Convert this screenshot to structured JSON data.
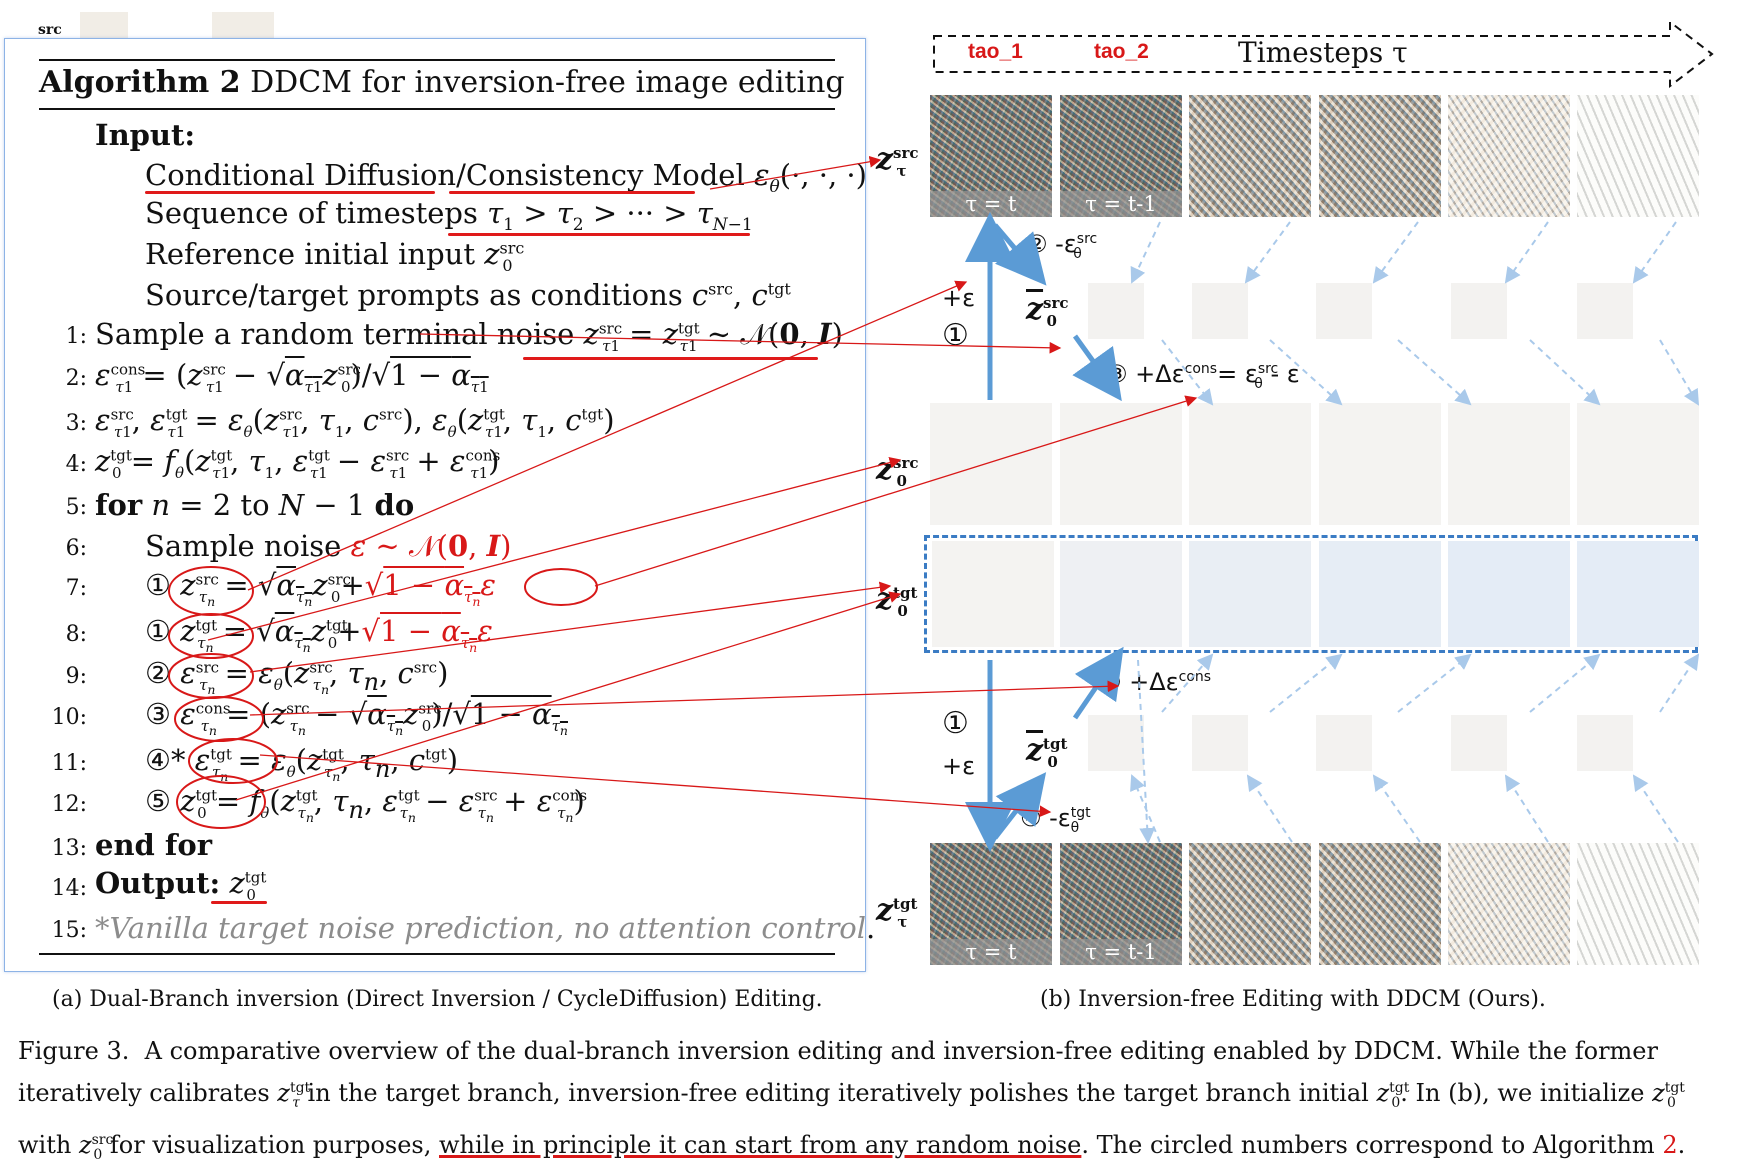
{
  "header_snippet": {
    "label": "src"
  },
  "algorithm": {
    "title_bold": "Algorithm 2",
    "title_rest": " DDCM for inversion-free image editing",
    "input_label": "Input:",
    "inputs": [
      "Conditional Diffusion/Consistency Model εθ(·, ·, ·)",
      "Sequence of timesteps τ1 > τ2 > ··· > τN−1",
      "Reference initial input z0src",
      "Source/target prompts as conditions csrc, ctgt"
    ],
    "lines": [
      {
        "no": "1:",
        "text": "Sample a random terminal noise zτ1src = zτ1tgt ∼ N(0, I)"
      },
      {
        "no": "2:",
        "text": "ετ1cons = (zτ1src − √ατ1 z0src)/√1 − ατ1"
      },
      {
        "no": "3:",
        "text": "ετ1src, ετ1tgt = εθ(zτ1src, τ1, csrc), εθ(zτ1tgt, τ1, ctgt)"
      },
      {
        "no": "4:",
        "text": "z0tgt = fθ(zτ1tgt, τ1, ετ1tgt − ετ1src + ετ1cons)"
      },
      {
        "no": "5:",
        "text": "for n = 2 to N − 1 do"
      },
      {
        "no": "6:",
        "text": "Sample noise ε ∼ N(0, I)"
      },
      {
        "no": "7:",
        "text": "① zτnsrc = √ατn z0src + √1 − ατn ε"
      },
      {
        "no": "8:",
        "text": "① zτntgt = √ατn z0tgt + √1 − ατn ε"
      },
      {
        "no": "9:",
        "text": "② ετnsrc = εθ(zτnsrc, τn, csrc)"
      },
      {
        "no": "10:",
        "text": "③ ετncons = (zτnsrc − √ατn z0src)/√1 − ατn"
      },
      {
        "no": "11:",
        "text": "④* ετntgt = εθ(zτntgt, τn, ctgt)"
      },
      {
        "no": "12:",
        "text": "⑤ z0tgt = fθ(zτntgt, τn, ετntgt − ετnsrc + ετncons)"
      },
      {
        "no": "13:",
        "text": "end for"
      },
      {
        "no": "14:",
        "text": "Output: z0tgt"
      },
      {
        "no": "15:",
        "text": "*Vanilla target noise prediction, no attention control."
      }
    ]
  },
  "timeline": {
    "tao_1": "tao_1",
    "tao_2": "tao_2",
    "label": "Timesteps τ"
  },
  "tau_tags": [
    "τ = t",
    "τ = t-1"
  ],
  "row_labels": {
    "z_tau_src": "zτsrc",
    "z0_bar_src": "z̄0src",
    "z0_src": "z0src",
    "z0_tgt": "z0tgt",
    "z0_bar_tgt": "z̄0tgt",
    "z_tau_tgt": "zτtgt"
  },
  "ops": {
    "op2": "② -εθsrc",
    "op1_top": "+ε",
    "op3": "③ +Δεcons = εθsrc - ε",
    "op5": "⑤ +Δεcons",
    "op4": "④ -εθtgt",
    "op1_bottom": "+ε"
  },
  "captions": {
    "a": "(a) Dual-Branch inversion (Direct Inversion / CycleDiffusion) Editing.",
    "b": "(b) Inversion-free Editing with DDCM (Ours).",
    "figure_lines": [
      "Figure 3.  A comparative overview of the dual-branch inversion editing and inversion-free editing enabled by DDCM. While the former",
      "iteratively calibrates zτtgt in the target branch, inversion-free editing iteratively polishes the target branch initial z0tgt. In (b), we initialize z0tgt",
      "with z0src for visualization purposes, while in principle it can start from any random noise. The circled numbers correspond to Algorithm 2."
    ]
  },
  "colors": {
    "accent_red": "#d81818",
    "arrow_blue": "#5b9bd5",
    "dash_blue": "#3b7cc4"
  }
}
